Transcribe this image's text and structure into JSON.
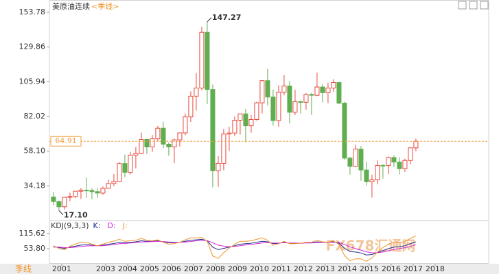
{
  "header": {
    "title": "美原油连续",
    "period": "<季线>"
  },
  "chart_data": [
    {
      "type": "candlestick",
      "x": [
        2000.625,
        2000.875,
        2001.125,
        2001.375,
        2001.625,
        2001.875,
        2002.125,
        2002.375,
        2002.625,
        2002.875,
        2003.125,
        2003.375,
        2003.625,
        2003.875,
        2004.125,
        2004.375,
        2004.625,
        2004.875,
        2005.125,
        2005.375,
        2005.625,
        2005.875,
        2006.125,
        2006.375,
        2006.625,
        2006.875,
        2007.125,
        2007.375,
        2007.625,
        2007.875,
        2008.125,
        2008.375,
        2008.625,
        2008.875,
        2009.125,
        2009.375,
        2009.625,
        2009.875,
        2010.125,
        2010.375,
        2010.625,
        2010.875,
        2011.125,
        2011.375,
        2011.625,
        2011.875,
        2012.125,
        2012.375,
        2012.625,
        2012.875,
        2013.125,
        2013.375,
        2013.625,
        2013.875,
        2014.125,
        2014.375,
        2014.625,
        2014.875,
        2015.125,
        2015.375,
        2015.625,
        2015.875,
        2016.125,
        2016.375,
        2016.625,
        2016.875,
        2017.125
      ],
      "open": [
        26.5,
        23.4,
        19.8,
        26.3,
        26.9,
        30.5,
        31.2,
        31.0,
        30.2,
        29.2,
        32.5,
        35.8,
        37.1,
        49.6,
        43.5,
        55.4,
        56.5,
        66.2,
        61.0,
        66.6,
        73.9,
        62.9,
        61.0,
        65.9,
        70.7,
        81.7,
        96.0,
        101.6,
        140.0,
        100.6,
        44.6,
        49.7,
        69.9,
        70.6,
        79.4,
        83.8,
        75.6,
        79.9,
        91.4,
        106.7,
        95.4,
        79.2,
        98.8,
        103.0,
        84.9,
        92.2,
        91.8,
        97.2,
        96.6,
        102.3,
        98.4,
        101.6,
        105.4,
        91.2,
        53.3,
        47.6,
        59.5,
        45.1,
        37.0,
        38.3,
        48.3,
        48.2,
        53.7,
        50.6,
        46.0,
        51.7,
        60.4
      ],
      "high": [
        29.9,
        23.9,
        26.3,
        29.4,
        30.7,
        32.7,
        39.99,
        32.5,
        32.6,
        33.8,
        38.4,
        42.3,
        50.5,
        55.7,
        57.6,
        60.9,
        70.9,
        66.8,
        69.2,
        75.4,
        78.4,
        64.2,
        66.7,
        70.7,
        84.1,
        99.3,
        111.8,
        143.7,
        147.27,
        104.0,
        54.7,
        73.4,
        75.0,
        82.0,
        83.9,
        87.2,
        83.0,
        92.1,
        107.0,
        114.8,
        100.6,
        103.4,
        110.6,
        106.4,
        100.4,
        93.0,
        98.2,
        98.2,
        112.2,
        104.4,
        105.2,
        107.7,
        105.9,
        92.1,
        54.2,
        62.6,
        61.6,
        50.9,
        41.9,
        51.7,
        49.0,
        54.5,
        55.2,
        53.8,
        52.9,
        60.5,
        66.7
      ],
      "low": [
        21.0,
        17.1,
        17.9,
        23.7,
        25.7,
        25.2,
        26.0,
        25.0,
        26.0,
        28.0,
        32.2,
        34.0,
        38.0,
        40.3,
        42.1,
        46.2,
        56.0,
        56.1,
        57.6,
        64.8,
        60.2,
        54.9,
        49.9,
        61.3,
        69.0,
        78.2,
        86.1,
        100.1,
        90.5,
        33.2,
        33.6,
        45.0,
        58.3,
        68.6,
        69.5,
        64.2,
        70.8,
        79.2,
        84.1,
        89.6,
        75.7,
        74.9,
        96.6,
        77.3,
        83.0,
        84.1,
        86.7,
        83.0,
        96.0,
        91.8,
        91.2,
        99.0,
        90.4,
        52.3,
        42.0,
        47.0,
        37.8,
        34.5,
        26.1,
        35.2,
        39.2,
        42.2,
        47.1,
        42.1,
        43.8,
        49.1,
        58.1
      ],
      "close": [
        23.4,
        19.8,
        26.3,
        26.9,
        30.5,
        31.2,
        31.0,
        30.2,
        29.2,
        32.5,
        35.8,
        37.1,
        49.6,
        43.5,
        55.4,
        56.5,
        66.2,
        61.0,
        66.6,
        73.9,
        62.9,
        61.0,
        65.9,
        70.7,
        81.7,
        96.0,
        101.6,
        140.0,
        100.6,
        44.6,
        49.7,
        69.9,
        70.6,
        79.4,
        83.8,
        75.6,
        79.9,
        91.4,
        106.7,
        95.4,
        79.2,
        98.8,
        103.0,
        84.9,
        92.2,
        91.8,
        97.2,
        96.6,
        102.3,
        98.4,
        101.6,
        105.4,
        91.2,
        53.3,
        47.6,
        59.5,
        45.1,
        37.0,
        38.3,
        48.3,
        48.2,
        53.7,
        50.6,
        46.0,
        51.7,
        60.4,
        64.9
      ],
      "up_color": "#e8463a",
      "down_color": "#5fae4f",
      "xlim": [
        2000.44,
        2020.44
      ],
      "xticks": [
        2001,
        2003,
        2004,
        2005,
        2006,
        2007,
        2008,
        2009,
        2010,
        2011,
        2012,
        2013,
        2014,
        2015,
        2016,
        2017,
        2018
      ],
      "ylim": [
        10.26,
        153.78
      ],
      "yticks": [
        {
          "value": 34.18,
          "label": "34.18"
        },
        {
          "value": 58.1,
          "label": "58.10"
        },
        82.02,
        105.94,
        129.86,
        153.78
      ],
      "last_price": 64.91,
      "last_price_color": "#f0a040",
      "max_label": 147.27,
      "min_label": {
        "value": 17.1,
        "label": "17.10"
      }
    },
    {
      "type": "line",
      "title": "KDJ(9,3,3)",
      "series": [
        {
          "name": "K:",
          "color": "#1f2d8a",
          "values": [
            62,
            58,
            55,
            60,
            64,
            68,
            70,
            68,
            66,
            68,
            72,
            75,
            80,
            78,
            80,
            82,
            86,
            84,
            84,
            86,
            82,
            78,
            78,
            80,
            84,
            88,
            90,
            92,
            86,
            60,
            50,
            55,
            60,
            66,
            72,
            74,
            76,
            80,
            84,
            82,
            74,
            76,
            80,
            76,
            76,
            76,
            78,
            78,
            82,
            80,
            80,
            82,
            76,
            56,
            42,
            40,
            36,
            28,
            30,
            38,
            46,
            54,
            60,
            62,
            66,
            74,
            82
          ]
        },
        {
          "name": "D:",
          "color": "#d726d7",
          "values": [
            60,
            60,
            58,
            58,
            60,
            62,
            65,
            66,
            66,
            66,
            68,
            70,
            74,
            75,
            77,
            79,
            81,
            82,
            83,
            84,
            83,
            81,
            80,
            80,
            81,
            83,
            86,
            88,
            87,
            78,
            68,
            64,
            62,
            63,
            66,
            69,
            71,
            74,
            77,
            79,
            77,
            77,
            78,
            77,
            77,
            76,
            77,
            77,
            79,
            79,
            80,
            80,
            79,
            71,
            61,
            54,
            48,
            41,
            37,
            37,
            40,
            45,
            50,
            54,
            58,
            63,
            70
          ]
        },
        {
          "name": "J:",
          "color": "#f0962a",
          "values": [
            66,
            54,
            49,
            64,
            72,
            80,
            80,
            72,
            66,
            72,
            80,
            85,
            92,
            84,
            86,
            88,
            96,
            88,
            86,
            90,
            80,
            72,
            74,
            80,
            90,
            98,
            98,
            100,
            84,
            24,
            14,
            37,
            56,
            72,
            84,
            84,
            86,
            92,
            98,
            88,
            68,
            74,
            84,
            74,
            74,
            76,
            80,
            80,
            88,
            82,
            80,
            86,
            70,
            26,
            4,
            12,
            12,
            2,
            16,
            40,
            58,
            72,
            80,
            78,
            82,
            96,
            106
          ]
        }
      ],
      "ylim": [
        -8,
        169
      ],
      "yticks": [
        {
          "value": 53.8,
          "label": "53.80"
        },
        115.62
      ]
    }
  ],
  "footer": {
    "period_button": "季线",
    "watermark": "FX678汇通网"
  }
}
